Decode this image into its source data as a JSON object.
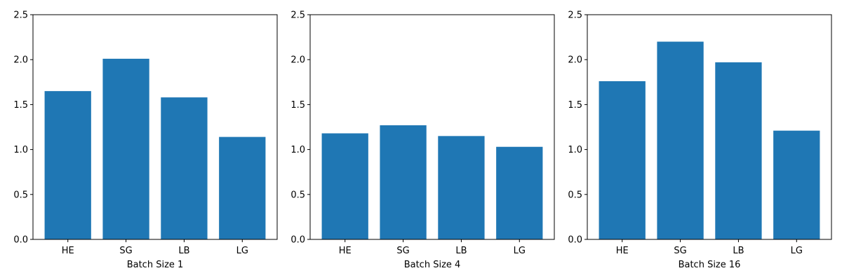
{
  "chart_data": [
    {
      "type": "bar",
      "title": "",
      "xlabel": "Batch Size 1",
      "ylabel": "",
      "categories": [
        "HE",
        "SG",
        "LB",
        "LG"
      ],
      "values": [
        1.65,
        2.01,
        1.58,
        1.14
      ],
      "ylim": [
        0,
        2.5
      ],
      "yticks": [
        0.0,
        0.5,
        1.0,
        1.5,
        2.0,
        2.5
      ],
      "ytick_labels": [
        "0.0",
        "0.5",
        "1.0",
        "1.5",
        "2.0",
        "2.5"
      ],
      "color": "#1f77b4",
      "grid": false,
      "legend": "none"
    },
    {
      "type": "bar",
      "title": "",
      "xlabel": "Batch Size 4",
      "ylabel": "",
      "categories": [
        "HE",
        "SG",
        "LB",
        "LG"
      ],
      "values": [
        1.18,
        1.27,
        1.15,
        1.03
      ],
      "ylim": [
        0,
        2.5
      ],
      "yticks": [
        0.0,
        0.5,
        1.0,
        1.5,
        2.0,
        2.5
      ],
      "ytick_labels": [
        "0.0",
        "0.5",
        "1.0",
        "1.5",
        "2.0",
        "2.5"
      ],
      "color": "#1f77b4",
      "grid": false,
      "legend": "none"
    },
    {
      "type": "bar",
      "title": "",
      "xlabel": "Batch Size 16",
      "ylabel": "",
      "categories": [
        "HE",
        "SG",
        "LB",
        "LG"
      ],
      "values": [
        1.76,
        2.2,
        1.97,
        1.21
      ],
      "ylim": [
        0,
        2.5
      ],
      "yticks": [
        0.0,
        0.5,
        1.0,
        1.5,
        2.0,
        2.5
      ],
      "ytick_labels": [
        "0.0",
        "0.5",
        "1.0",
        "1.5",
        "2.0",
        "2.5"
      ],
      "color": "#1f77b4",
      "grid": false,
      "legend": "none"
    }
  ]
}
